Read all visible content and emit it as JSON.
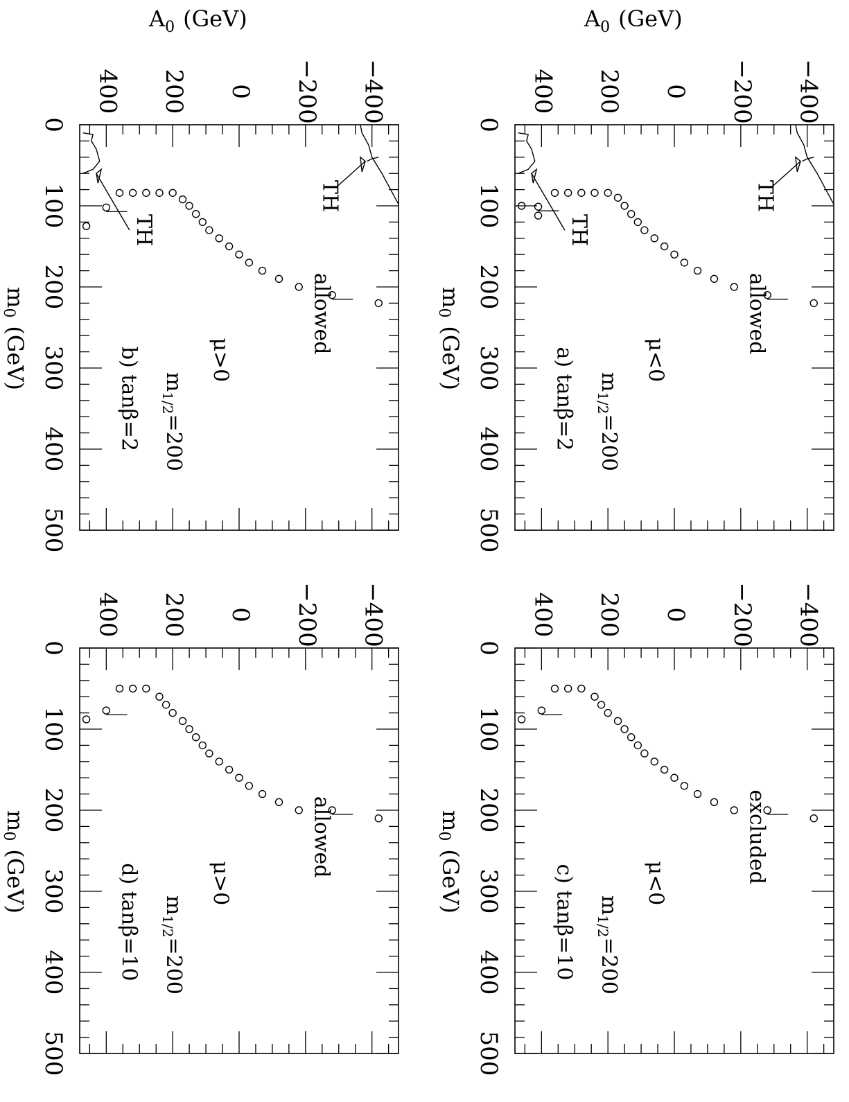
{
  "figure": {
    "x_axis_title": "m",
    "x_axis_title_sub": "0",
    "x_axis_title_unit": "(GeV)",
    "y_axis_title": "A",
    "y_axis_title_sub": "0",
    "y_axis_title_unit": "(GeV)",
    "th_label": "TH"
  },
  "chart_data": [
    {
      "id": "a",
      "type": "scatter",
      "panel_label": "a) tanβ=2",
      "m_half_label": "m",
      "m_half_sub": "1/2",
      "m_half_value": "=200",
      "mu_label": "μ<0",
      "region_label": "allowed",
      "xlim": [
        0,
        500
      ],
      "ylim": [
        -480,
        480
      ],
      "x_ticks": [
        "0",
        "100",
        "200",
        "300",
        "400",
        "500"
      ],
      "y_ticks": [
        "−400",
        "−200",
        "0",
        "200",
        "400"
      ],
      "boundary": {
        "x": [
          100,
          101,
          112,
          84,
          84,
          84,
          84,
          84,
          90,
          100,
          110,
          120,
          130,
          140,
          150,
          160,
          170,
          180,
          190,
          200,
          210,
          220
        ],
        "y": [
          460,
          410,
          410,
          360,
          320,
          280,
          240,
          200,
          170,
          150,
          130,
          110,
          90,
          60,
          30,
          0,
          -30,
          -70,
          -120,
          -180,
          -280,
          -420
        ]
      },
      "th_regions": true
    },
    {
      "id": "b",
      "type": "scatter",
      "panel_label": "b) tanβ=2",
      "m_half_label": "m",
      "m_half_sub": "1/2",
      "m_half_value": "=200",
      "mu_label": "μ>0",
      "region_label": "allowed",
      "xlim": [
        0,
        500
      ],
      "ylim": [
        -480,
        480
      ],
      "x_ticks": [
        "0",
        "100",
        "200",
        "300",
        "400",
        "500"
      ],
      "y_ticks": [
        "−400",
        "−200",
        "0",
        "200",
        "400"
      ],
      "boundary": {
        "x": [
          125,
          102,
          84,
          84,
          84,
          84,
          84,
          92,
          100,
          110,
          120,
          130,
          140,
          150,
          160,
          170,
          180,
          190,
          200,
          210,
          220
        ],
        "y": [
          460,
          400,
          360,
          320,
          280,
          240,
          200,
          170,
          150,
          130,
          110,
          90,
          60,
          30,
          0,
          -30,
          -70,
          -120,
          -180,
          -280,
          -420
        ]
      },
      "th_regions": true
    },
    {
      "id": "c",
      "type": "scatter",
      "panel_label": "c) tanβ=10",
      "m_half_label": "m",
      "m_half_sub": "1/2",
      "m_half_value": "=200",
      "mu_label": "μ<0",
      "region_label": "excluded",
      "xlim": [
        0,
        500
      ],
      "ylim": [
        -480,
        480
      ],
      "x_ticks": [
        "0",
        "100",
        "200",
        "300",
        "400",
        "500"
      ],
      "y_ticks": [
        "−400",
        "−200",
        "0",
        "200",
        "400"
      ],
      "boundary": {
        "x": [
          88,
          77,
          50,
          50,
          50,
          60,
          70,
          80,
          90,
          100,
          110,
          120,
          130,
          140,
          150,
          160,
          170,
          180,
          190,
          200,
          200,
          210
        ],
        "y": [
          460,
          400,
          360,
          320,
          280,
          240,
          220,
          200,
          170,
          150,
          130,
          110,
          90,
          60,
          30,
          0,
          -30,
          -70,
          -120,
          -180,
          -280,
          -420
        ]
      },
      "th_regions": false
    },
    {
      "id": "d",
      "type": "scatter",
      "panel_label": "d) tanβ=10",
      "m_half_label": "m",
      "m_half_sub": "1/2",
      "m_half_value": "=200",
      "mu_label": "μ>0",
      "region_label": "allowed",
      "xlim": [
        0,
        500
      ],
      "ylim": [
        -480,
        480
      ],
      "x_ticks": [
        "0",
        "100",
        "200",
        "300",
        "400",
        "500"
      ],
      "y_ticks": [
        "−400",
        "−200",
        "0",
        "200",
        "400"
      ],
      "boundary": {
        "x": [
          88,
          77,
          50,
          50,
          50,
          60,
          70,
          80,
          90,
          100,
          110,
          120,
          130,
          140,
          150,
          160,
          170,
          180,
          190,
          200,
          200,
          210
        ],
        "y": [
          460,
          400,
          360,
          320,
          280,
          240,
          220,
          200,
          170,
          150,
          130,
          110,
          90,
          60,
          30,
          0,
          -30,
          -70,
          -120,
          -180,
          -280,
          -420
        ]
      },
      "th_regions": false
    }
  ]
}
